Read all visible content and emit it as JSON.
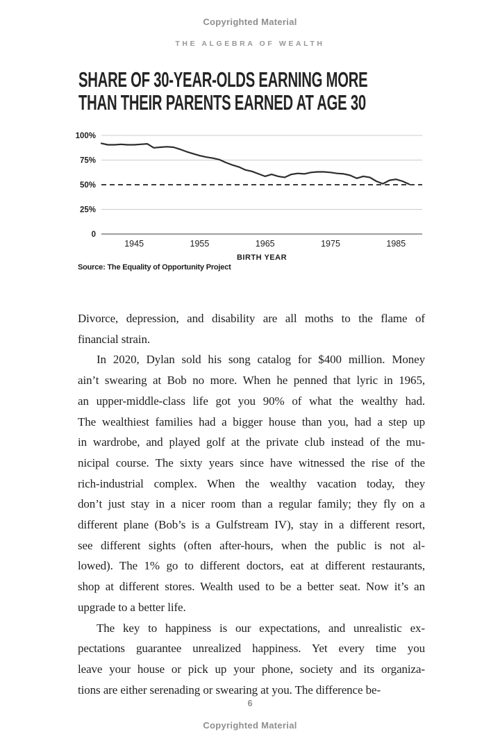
{
  "page": {
    "top_copyright": "Copyrighted Material",
    "running_header": "THE ALGEBRA OF WEALTH",
    "page_number": "6",
    "bottom_copyright": "Copyrighted Material"
  },
  "chart": {
    "title_lines": [
      "SHARE OF 30-YEAR-OLDS EARNING MORE",
      "THAN THEIR PARENTS EARNED AT AGE 30"
    ],
    "source": "Source: The Equality of Opportunity Project"
  },
  "chart_data": {
    "type": "line",
    "title": "Share of 30-year-olds earning more than their parents earned at age 30",
    "xlabel": "BIRTH YEAR",
    "ylabel": "",
    "xlim": [
      1940,
      1989
    ],
    "ylim": [
      0,
      100
    ],
    "grid": "horizontal",
    "legend": "none",
    "x_ticks": [
      1945,
      1955,
      1965,
      1975,
      1985
    ],
    "y_ticks": [
      {
        "label": "100%",
        "value": 100
      },
      {
        "label": "75%",
        "value": 75
      },
      {
        "label": "50%",
        "value": 50
      },
      {
        "label": "25%",
        "value": 25
      },
      {
        "label": "0",
        "value": 0
      }
    ],
    "reference_line": {
      "value": 50,
      "style": "dashed"
    },
    "series": [
      {
        "name": "Share earning more than parents (%)",
        "x": [
          1940,
          1941,
          1942,
          1943,
          1944,
          1945,
          1946,
          1947,
          1948,
          1949,
          1950,
          1951,
          1952,
          1953,
          1954,
          1955,
          1956,
          1957,
          1958,
          1959,
          1960,
          1961,
          1962,
          1963,
          1964,
          1965,
          1966,
          1967,
          1968,
          1969,
          1970,
          1971,
          1972,
          1973,
          1974,
          1975,
          1976,
          1977,
          1978,
          1979,
          1980,
          1981,
          1982,
          1983,
          1984,
          1985,
          1986,
          1987
        ],
        "values": [
          92,
          90.5,
          90.5,
          91,
          90.5,
          90.5,
          91,
          91.5,
          87.5,
          88,
          88.5,
          88,
          86,
          83.5,
          81.5,
          79.5,
          78,
          77,
          75.5,
          72.5,
          70,
          68,
          65,
          63.5,
          61,
          58.5,
          60.5,
          58.5,
          57.5,
          60.5,
          61.5,
          61,
          62.5,
          63,
          63,
          62.5,
          61.5,
          61,
          59.5,
          56.5,
          58.5,
          57.5,
          53.5,
          51,
          54.5,
          55.5,
          53.5,
          50.5
        ]
      }
    ],
    "colors": {
      "line": "#2c2c2c",
      "grid": "#cbcbcb",
      "dashed": "#3c3c3c",
      "axis": "#8f8f8f",
      "tick_text": "#1d1d1d"
    },
    "source": "Source: The Equality of Opportunity Project"
  },
  "body": {
    "paragraphs": [
      {
        "indent": false,
        "lines": [
          "Divorce, depression, and disability are all moths to the flame of",
          "financial strain."
        ]
      },
      {
        "indent": true,
        "lines": [
          "In 2020, Dylan sold his song catalog for $400 million. Money",
          "ain’t swearing at Bob no more. When he penned that lyric in 1965,",
          "an upper-middle-class life got you 90% of what the wealthy had.",
          "The wealthiest families had a bigger house than you, had a step up",
          "in wardrobe, and played golf at the private club instead of the mu-",
          "nicipal course. The sixty years since have witnessed the rise of the",
          "rich-industrial complex. When the wealthy vacation today, they",
          "don’t just stay in a nicer room than a regular family; they fly on a",
          "different plane (Bob’s is a Gulfstream IV), stay in a different resort,",
          "see different sights (often after-hours, when the public is not al-",
          "lowed). The 1% go to different doctors, eat at different restaurants,",
          "shop at different stores. Wealth used to be a better seat. Now it’s an",
          "upgrade to a better life."
        ]
      },
      {
        "indent": true,
        "lines": [
          "The key to happiness is our expectations, and unrealistic ex-",
          "pectations guarantee unrealized happiness. Yet every time you",
          "leave your house or pick up your phone, society and its organiza-",
          "tions are either serenading or swearing at you. The difference be-"
        ]
      }
    ]
  }
}
